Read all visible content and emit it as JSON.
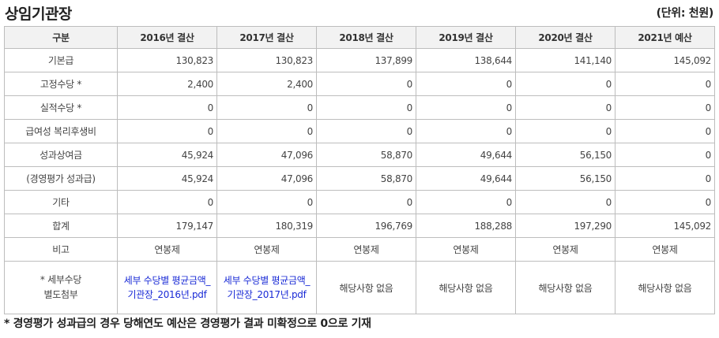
{
  "title": "상임기관장",
  "unit": "(단위: 천원)",
  "table": {
    "headers": [
      "구분",
      "2016년 결산",
      "2017년 결산",
      "2018년 결산",
      "2019년 결산",
      "2020년 결산",
      "2021년 예산"
    ],
    "rows": [
      {
        "label": "기본급",
        "values": [
          "130,823",
          "130,823",
          "137,899",
          "138,644",
          "141,140",
          "145,092"
        ]
      },
      {
        "label": "고정수당 *",
        "values": [
          "2,400",
          "2,400",
          "0",
          "0",
          "0",
          "0"
        ]
      },
      {
        "label": "실적수당 *",
        "values": [
          "0",
          "0",
          "0",
          "0",
          "0",
          "0"
        ]
      },
      {
        "label": "급여성 복리후생비",
        "values": [
          "0",
          "0",
          "0",
          "0",
          "0",
          "0"
        ]
      },
      {
        "label": "성과상여금",
        "values": [
          "45,924",
          "47,096",
          "58,870",
          "49,644",
          "56,150",
          "0"
        ]
      },
      {
        "label": "(경영평가 성과급)",
        "values": [
          "45,924",
          "47,096",
          "58,870",
          "49,644",
          "56,150",
          "0"
        ]
      },
      {
        "label": "기타",
        "values": [
          "0",
          "0",
          "0",
          "0",
          "0",
          "0"
        ]
      },
      {
        "label": "합계",
        "values": [
          "179,147",
          "180,319",
          "196,769",
          "188,288",
          "197,290",
          "145,092"
        ]
      }
    ],
    "remarks": {
      "label": "비고",
      "values": [
        "연봉제",
        "연봉제",
        "연봉제",
        "연봉제",
        "연봉제",
        "연봉제"
      ]
    },
    "attachments": {
      "label_line1": "* 세부수당",
      "label_line2": "별도첨부",
      "values": [
        "세부 수당별 평균금액_기관장_2016년.pdf",
        "세부 수당별 평균금액_기관장_2017년.pdf",
        "해당사항 없음",
        "해당사항 없음",
        "해당사항 없음",
        "해당사항 없음"
      ]
    }
  },
  "footnote": "* 경영평가 성과급의 경우 당해연도 예산은 경영평가 결과 미확정으로 0으로 기재",
  "colors": {
    "link": "#1a2bd6",
    "header_bg": "#f2f2f2",
    "border": "#bdbdbd"
  }
}
